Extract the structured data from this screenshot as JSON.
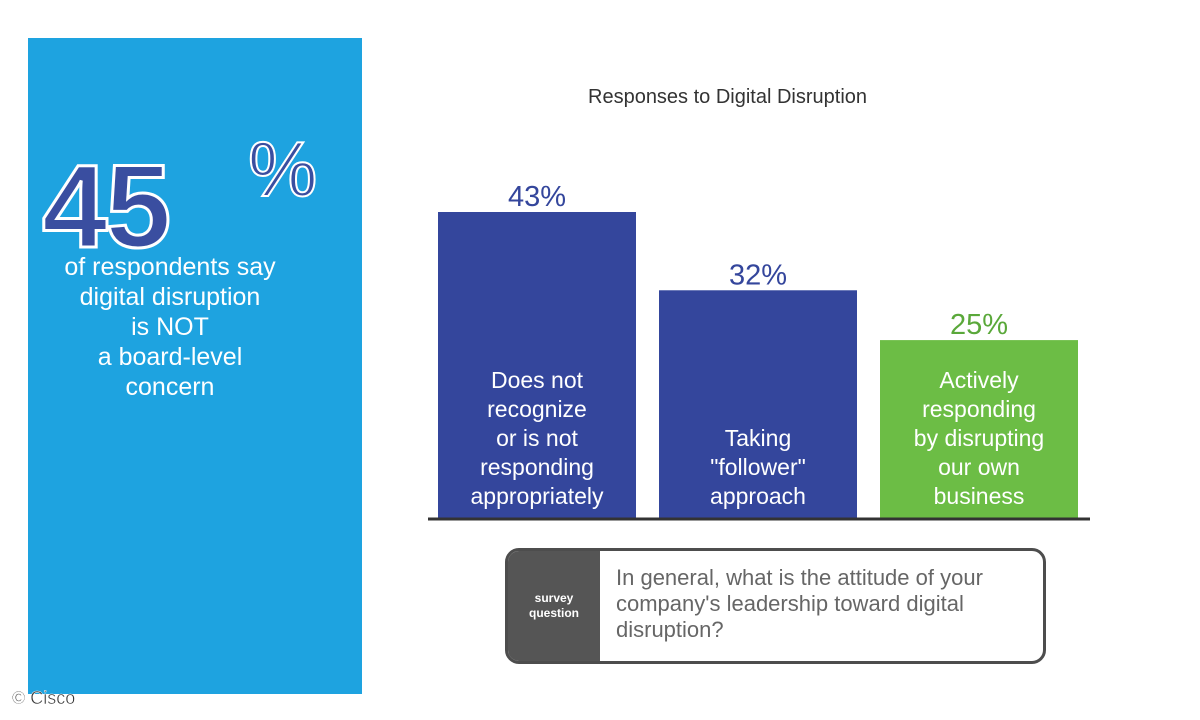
{
  "highlight": {
    "number": "45",
    "percent_sign": "%",
    "text": "of respondents say\ndigital disruption\nis NOT\na board-level\nconcern"
  },
  "survey": {
    "label": "survey\nquestion",
    "question": "In general, what is the attitude of your company's leadership toward digital disruption?"
  },
  "copyright": "© Cisco",
  "colors": {
    "panel": "#1ea3e0",
    "bar_blue": "#34469c",
    "bar_green": "#6cbd45",
    "value_blue": "#34469c",
    "value_green": "#5aa83a"
  },
  "chart_data": {
    "type": "bar",
    "title": "Responses to Digital Disruption",
    "categories": [
      "Does not recognize or is not responding appropriately",
      "Taking \"follower\" approach",
      "Actively responding by disrupting our own business"
    ],
    "category_lines": [
      [
        "Does not",
        "recognize",
        "or is not",
        "responding",
        "appropriately"
      ],
      [
        "Taking",
        "\"follower\"",
        "approach"
      ],
      [
        "Actively",
        "responding",
        "by disrupting",
        "our own",
        "business"
      ]
    ],
    "values": [
      43,
      32,
      25
    ],
    "value_labels": [
      "43%",
      "32%",
      "25%"
    ],
    "bar_colors": [
      "#34469c",
      "#34469c",
      "#6cbd45"
    ],
    "label_colors": [
      "#34469c",
      "#34469c",
      "#5aa83a"
    ],
    "ylim": [
      0,
      43
    ],
    "grid": false,
    "legend": "none"
  }
}
